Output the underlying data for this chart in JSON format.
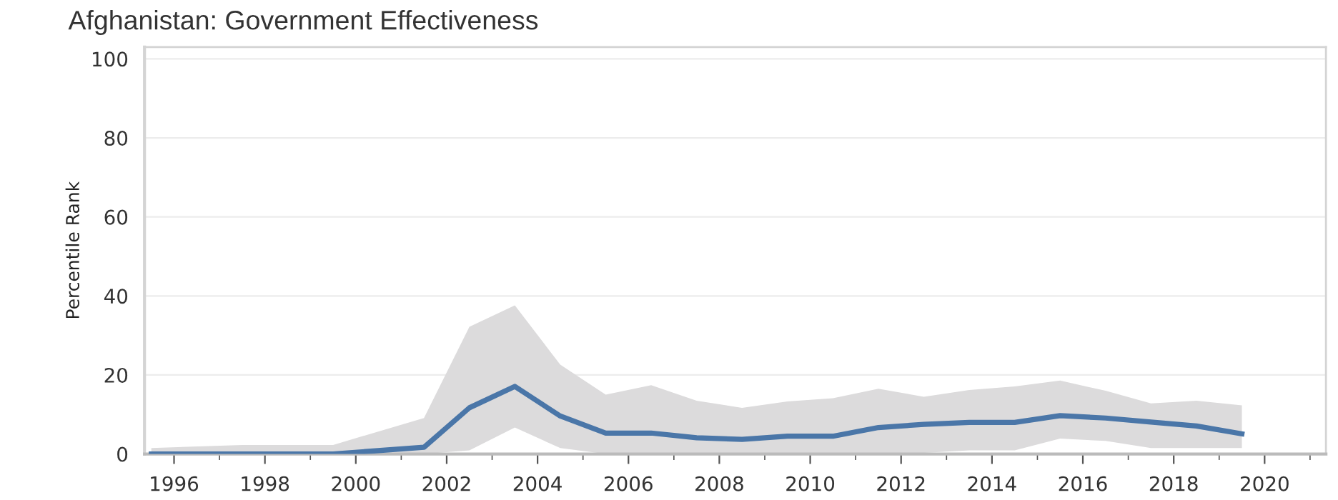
{
  "chart_data": {
    "type": "line",
    "title": "Afghanistan: Government Effectiveness",
    "ylabel": "Percentile Rank",
    "x": [
      1995.5,
      1997.5,
      1999.5,
      2001.5,
      2002.5,
      2003.5,
      2004.5,
      2005.5,
      2006.5,
      2007.5,
      2008.5,
      2009.5,
      2010.5,
      2011.5,
      2012.5,
      2013.5,
      2014.5,
      2015.5,
      2016.5,
      2017.5,
      2018.5,
      2019.5
    ],
    "series": [
      {
        "color": "#4a76a8",
        "values": [
          0,
          0,
          0,
          1.7,
          11.7,
          17.1,
          9.6,
          5.3,
          5.3,
          4.1,
          3.7,
          4.5,
          4.5,
          6.7,
          7.5,
          8.0,
          8.0,
          9.7,
          9.1,
          8.1,
          7.1,
          5.1
        ],
        "upper": [
          1.5,
          2.3,
          2.3,
          9.1,
          32.2,
          37.6,
          22.6,
          15.0,
          17.4,
          13.5,
          11.7,
          13.3,
          14.1,
          16.5,
          14.5,
          16.2,
          17.1,
          18.6,
          16.0,
          12.8,
          13.5,
          12.3
        ],
        "lower": [
          0,
          0,
          0,
          0,
          0.9,
          6.7,
          1.5,
          0,
          0,
          0,
          0,
          0,
          0,
          0,
          0.3,
          0.9,
          0.9,
          3.9,
          3.3,
          1.5,
          1.5,
          1.5
        ]
      }
    ],
    "xlim": [
      1995.35,
      2021.35
    ],
    "xticks": [
      1996,
      1998,
      2000,
      2002,
      2004,
      2006,
      2008,
      2010,
      2012,
      2014,
      2016,
      2018,
      2020
    ],
    "ylim": [
      0,
      103
    ],
    "yticks": [
      0,
      20,
      40,
      60,
      80,
      100
    ],
    "grid": "y",
    "legend": false,
    "marker": "none",
    "line_style": "solid"
  }
}
